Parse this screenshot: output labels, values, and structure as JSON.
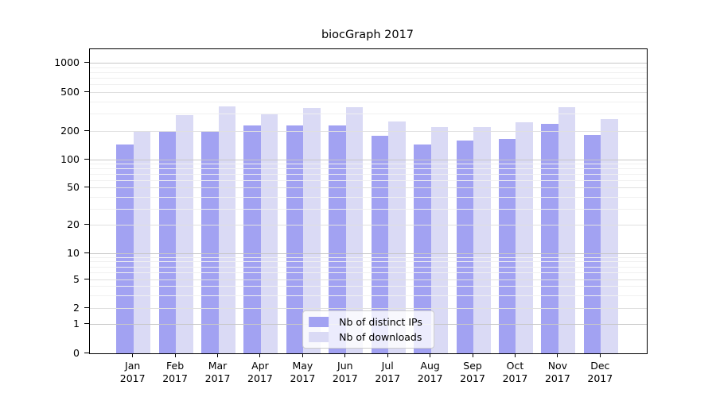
{
  "figure": {
    "title": "biocGraph 2017"
  },
  "chart_data": {
    "type": "bar",
    "title": "biocGraph 2017",
    "categories": [
      "Jan 2017",
      "Feb 2017",
      "Mar 2017",
      "Apr 2017",
      "May 2017",
      "Jun 2017",
      "Jul 2017",
      "Aug 2017",
      "Sep 2017",
      "Oct 2017",
      "Nov 2017",
      "Dec 2017"
    ],
    "series": [
      {
        "name": "Nb of distinct IPs",
        "color": "#a2a2f2",
        "values": [
          145,
          200,
          198,
          228,
          230,
          232,
          180,
          145,
          160,
          168,
          240,
          185
        ]
      },
      {
        "name": "Nb of downloads",
        "color": "#dadaf5",
        "values": [
          200,
          292,
          360,
          300,
          347,
          355,
          255,
          220,
          220,
          250,
          353,
          265
        ]
      }
    ],
    "xlabel": "",
    "ylabel": "",
    "yscale": "symlog",
    "yticks": [
      0,
      1,
      2,
      5,
      10,
      20,
      50,
      100,
      200,
      500,
      1000
    ],
    "ylim": [
      0,
      1300
    ],
    "grid": true,
    "legend_position": "lower center",
    "colors": {
      "spine": "#000000",
      "grid_major": "#c7c7c7",
      "grid_labeled": "#e0e0e0",
      "grid_minor": "#f0f0f0",
      "text": "#000000"
    }
  }
}
